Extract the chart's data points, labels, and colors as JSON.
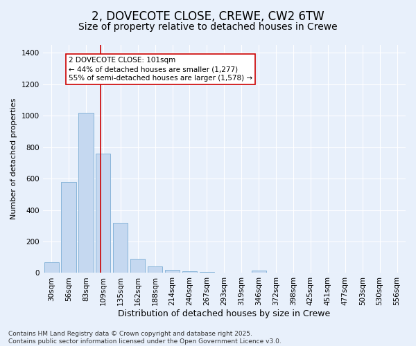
{
  "title": "2, DOVECOTE CLOSE, CREWE, CW2 6TW",
  "subtitle": "Size of property relative to detached houses in Crewe",
  "xlabel": "Distribution of detached houses by size in Crewe",
  "ylabel": "Number of detached properties",
  "categories": [
    "30sqm",
    "56sqm",
    "83sqm",
    "109sqm",
    "135sqm",
    "162sqm",
    "188sqm",
    "214sqm",
    "240sqm",
    "267sqm",
    "293sqm",
    "319sqm",
    "346sqm",
    "372sqm",
    "398sqm",
    "425sqm",
    "451sqm",
    "477sqm",
    "503sqm",
    "530sqm",
    "556sqm"
  ],
  "values": [
    70,
    580,
    1020,
    760,
    320,
    90,
    40,
    20,
    10,
    5,
    0,
    0,
    15,
    0,
    0,
    0,
    0,
    0,
    0,
    0,
    0
  ],
  "bar_color": "#c5d8f0",
  "bar_edge_color": "#7aadd4",
  "background_color": "#e8f0fb",
  "grid_color": "#ffffff",
  "red_line_x": 2.85,
  "red_line_color": "#cc0000",
  "annotation_text": "2 DOVECOTE CLOSE: 101sqm\n← 44% of detached houses are smaller (1,277)\n55% of semi-detached houses are larger (1,578) →",
  "annotation_box_facecolor": "#ffffff",
  "annotation_box_edgecolor": "#cc0000",
  "ylim": [
    0,
    1450
  ],
  "yticks": [
    0,
    200,
    400,
    600,
    800,
    1000,
    1200,
    1400
  ],
  "footnote": "Contains HM Land Registry data © Crown copyright and database right 2025.\nContains public sector information licensed under the Open Government Licence v3.0.",
  "title_fontsize": 12,
  "subtitle_fontsize": 10,
  "xlabel_fontsize": 9,
  "ylabel_fontsize": 8,
  "tick_fontsize": 7.5,
  "annotation_fontsize": 7.5,
  "footnote_fontsize": 6.5
}
